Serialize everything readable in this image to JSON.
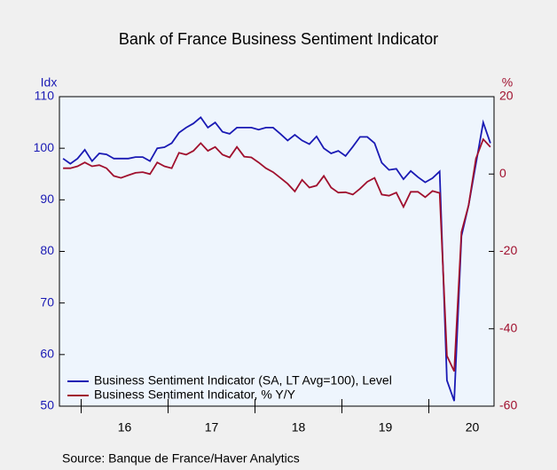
{
  "chart_data": {
    "type": "line",
    "title": "Bank of France Business Sentiment Indicator",
    "y_label": "Idx",
    "y2_label": "%",
    "source": "Source:  Banque de France/Haver Analytics",
    "categories": [
      null,
      null,
      null,
      null,
      null,
      null,
      null,
      null,
      null,
      "16",
      null,
      null,
      null,
      null,
      null,
      null,
      null,
      null,
      null,
      null,
      null,
      "17",
      null,
      null,
      null,
      null,
      null,
      null,
      null,
      null,
      null,
      null,
      null,
      "18",
      null,
      null,
      null,
      null,
      null,
      null,
      null,
      null,
      null,
      null,
      null,
      "19",
      null,
      null,
      null,
      null,
      null,
      null,
      null,
      null,
      null,
      null,
      null,
      "20",
      null,
      null
    ],
    "ylim": [
      50,
      110
    ],
    "yticks": [
      50,
      60,
      70,
      80,
      90,
      100,
      110
    ],
    "y2lim": [
      -60,
      20
    ],
    "y2ticks": [
      -60,
      -40,
      -20,
      0,
      20
    ],
    "grid": false,
    "legend": "lower left",
    "series": [
      {
        "name": "Business Sentiment Indicator (SA, LT Avg=100), Level",
        "color": "#1a1ab4",
        "values": [
          98,
          97,
          98,
          99.7,
          97.5,
          99,
          98.8,
          98,
          98,
          98,
          98.3,
          98.3,
          97.5,
          100,
          100.2,
          101,
          103,
          104,
          104.8,
          106,
          104,
          105,
          103.2,
          102.8,
          104,
          104,
          104,
          103.6,
          104,
          104,
          102.8,
          101.5,
          102.6,
          101.5,
          100.8,
          102.3,
          100,
          99,
          99.5,
          98.5,
          100.3,
          102.2,
          102.2,
          101,
          97.2,
          95.8,
          96,
          94,
          95.6,
          94.4,
          93.4,
          94.2,
          95.5,
          55,
          51,
          83,
          89,
          97,
          105,
          101
        ]
      },
      {
        "name": "Business Sentiment Indicator, % Y/Y",
        "color": "#a0102e",
        "axis": "y2",
        "values": [
          1.5,
          1.5,
          2,
          3,
          2,
          2.3,
          1.5,
          -0.5,
          -1,
          -0.3,
          0.3,
          0.5,
          0,
          3,
          2,
          1.5,
          5.5,
          5,
          6,
          8,
          6,
          7,
          5,
          4.3,
          7,
          4.5,
          4.3,
          3,
          1.5,
          0.5,
          -1,
          -2.5,
          -4.5,
          -1.5,
          -3.5,
          -3,
          -0.5,
          -3.5,
          -4.8,
          -4.7,
          -5.3,
          -3.8,
          -2,
          -1,
          -5.3,
          -5.6,
          -4.8,
          -8.5,
          -4.6,
          -4.6,
          -6,
          -4.4,
          -4.9,
          -47,
          -51,
          -15,
          -8,
          4,
          9,
          7
        ]
      }
    ]
  }
}
